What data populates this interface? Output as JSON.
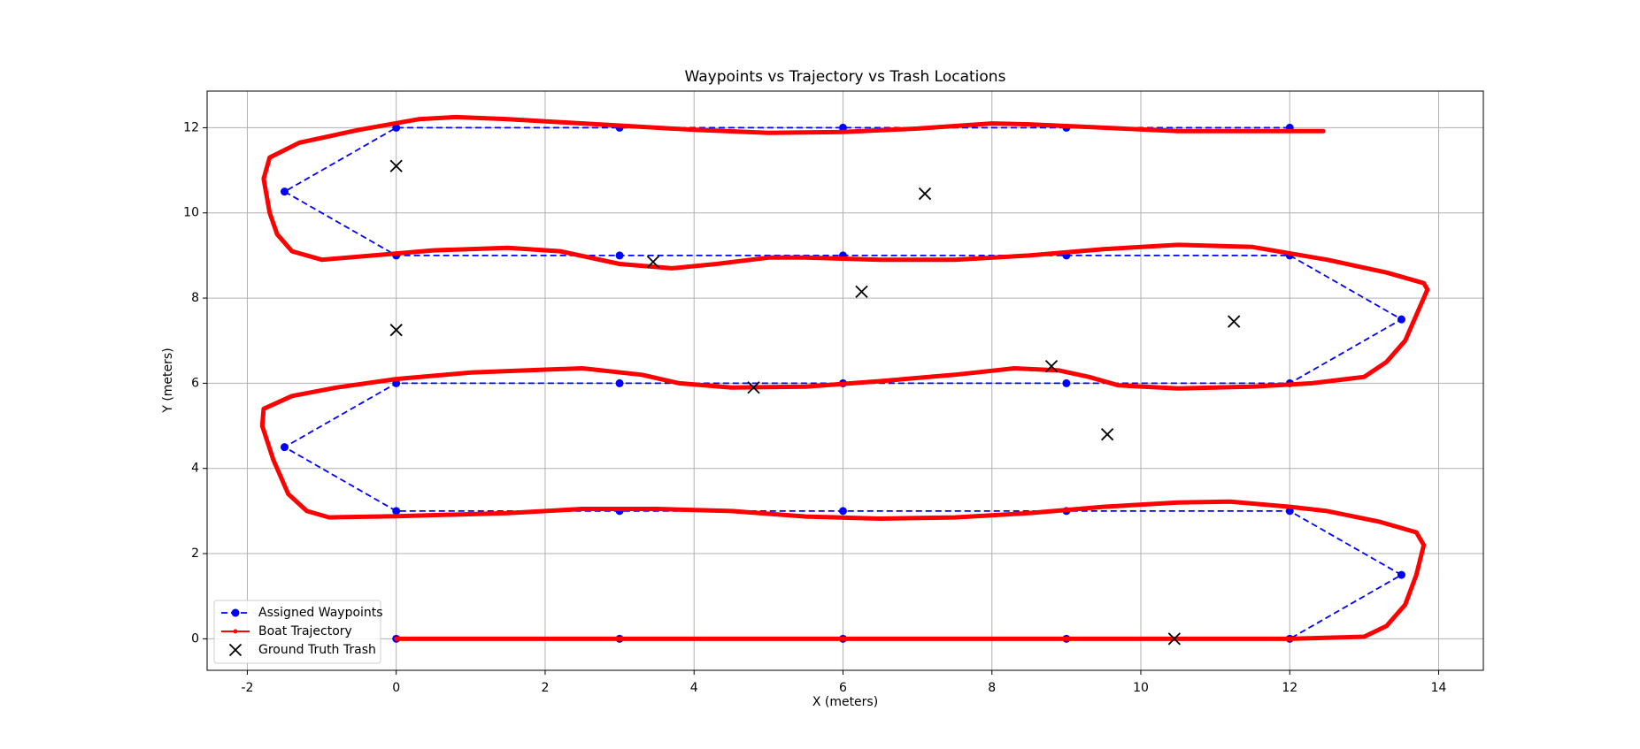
{
  "chart_data": {
    "type": "line",
    "title": "Waypoints vs Trajectory vs Trash Locations",
    "x_label": "X (meters)",
    "y_label": "Y (meters)",
    "xlim": [
      -2.54,
      14.6
    ],
    "ylim": [
      -0.74,
      12.86
    ],
    "xticks": [
      -2,
      0,
      2,
      4,
      6,
      8,
      10,
      12,
      14
    ],
    "yticks": [
      0,
      2,
      4,
      6,
      8,
      10,
      12
    ],
    "grid": true,
    "legend": "lower left",
    "series": [
      {
        "name": "Assigned Waypoints",
        "color": "#0000ff",
        "style": "dashed-circle",
        "x": [
          0,
          3,
          6,
          9,
          12,
          13.5,
          12,
          9,
          6,
          3,
          0,
          -1.5,
          0,
          3,
          6,
          9,
          12,
          13.5,
          12,
          9,
          6,
          3,
          0,
          -1.5,
          0,
          3,
          6,
          9,
          12
        ],
        "y": [
          0,
          0,
          0,
          0,
          0,
          1.5,
          3,
          3,
          3,
          3,
          3,
          4.5,
          6,
          6,
          6,
          6,
          6,
          7.5,
          9,
          9,
          9,
          9,
          9,
          10.5,
          12,
          12,
          12,
          12,
          12
        ]
      },
      {
        "name": "Boat Trajectory",
        "color": "#ff0000",
        "style": "thick-line",
        "x": [
          0,
          3,
          6,
          9,
          12,
          13,
          13.3,
          13.55,
          13.7,
          13.8,
          13.7,
          13.2,
          12.5,
          12,
          11.2,
          10.5,
          9.5,
          8.5,
          7.5,
          6.5,
          5.5,
          4.5,
          3.5,
          2.5,
          1.5,
          0,
          -0.9,
          -1.2,
          -1.45,
          -1.65,
          -1.8,
          -1.78,
          -1.4,
          -0.8,
          0,
          1,
          2,
          2.5,
          3.3,
          3.8,
          4.5,
          5.5,
          6.5,
          7.5,
          8.3,
          8.9,
          9.3,
          9.7,
          10.5,
          11.5,
          12.3,
          13,
          13.3,
          13.55,
          13.7,
          13.85,
          13.8,
          13.3,
          12.5,
          11.5,
          10.5,
          9.5,
          8.5,
          7.5,
          6.5,
          5.5,
          5,
          4.3,
          3.7,
          3,
          2.2,
          1.5,
          0.5,
          -1,
          -1.4,
          -1.6,
          -1.7,
          -1.78,
          -1.7,
          -1.3,
          -0.5,
          0.3,
          0.8,
          1.5,
          3,
          4,
          5,
          6,
          7,
          8,
          8.5,
          9.5,
          10.5,
          12,
          12.45
        ],
        "y": [
          0,
          0,
          0,
          0,
          0,
          0.05,
          0.3,
          0.8,
          1.5,
          2.2,
          2.5,
          2.75,
          3.0,
          3.1,
          3.22,
          3.2,
          3.1,
          2.95,
          2.85,
          2.82,
          2.87,
          3.0,
          3.05,
          3.05,
          2.95,
          2.88,
          2.85,
          3.0,
          3.4,
          4.2,
          5.0,
          5.4,
          5.7,
          5.9,
          6.1,
          6.25,
          6.32,
          6.35,
          6.2,
          6.0,
          5.9,
          5.92,
          6.05,
          6.2,
          6.35,
          6.3,
          6.15,
          5.95,
          5.88,
          5.92,
          6.0,
          6.15,
          6.5,
          7.0,
          7.6,
          8.2,
          8.35,
          8.6,
          8.9,
          9.2,
          9.25,
          9.15,
          9.0,
          8.9,
          8.9,
          8.95,
          8.95,
          8.8,
          8.7,
          8.8,
          9.1,
          9.18,
          9.12,
          8.9,
          9.1,
          9.5,
          10.0,
          10.8,
          11.3,
          11.65,
          11.95,
          12.2,
          12.25,
          12.2,
          12.05,
          11.95,
          11.88,
          11.9,
          11.98,
          12.1,
          12.08,
          12.0,
          11.92,
          11.92,
          11.92
        ]
      },
      {
        "name": "Ground Truth Trash",
        "color": "#000000",
        "style": "x-marker",
        "x": [
          0,
          7.1,
          3.45,
          6.25,
          0,
          11.25,
          8.8,
          4.8,
          9.55,
          10.45
        ],
        "y": [
          11.1,
          10.45,
          8.85,
          8.15,
          7.25,
          7.45,
          6.4,
          5.9,
          4.8,
          0
        ]
      }
    ]
  }
}
